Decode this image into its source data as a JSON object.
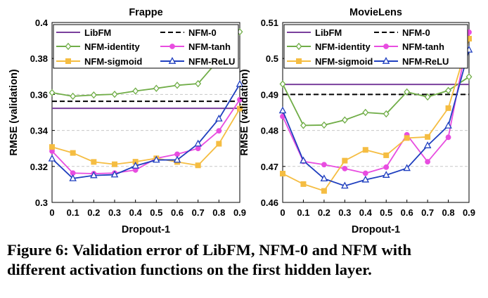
{
  "chart_data": [
    {
      "type": "line",
      "title": "Frappe",
      "xlabel": "Dropout-1",
      "ylabel": "RMSE (validation)",
      "x": [
        0,
        0.1,
        0.2,
        0.3,
        0.4,
        0.5,
        0.6,
        0.7,
        0.8,
        0.9
      ],
      "xticks": [
        "0",
        "0.1",
        "0.2",
        "0.3",
        "0.4",
        "0.5",
        "0.6",
        "0.7",
        "0.8",
        "0.9"
      ],
      "ylim": [
        0.3,
        0.4
      ],
      "yticks": [
        "0.3",
        "0.32",
        "0.34",
        "0.36",
        "0.38",
        "0.4"
      ],
      "grid": true,
      "legend_position": "top",
      "series": [
        {
          "name": "LibFM",
          "style": "solid",
          "color": "#7a3f9d",
          "marker": "none",
          "values": [
            0.3523,
            0.3523,
            0.3523,
            0.3523,
            0.3523,
            0.3523,
            0.3523,
            0.3523,
            0.3523,
            0.3523
          ]
        },
        {
          "name": "NFM-0",
          "style": "dashed",
          "color": "#000000",
          "marker": "none",
          "values": [
            0.3562,
            0.3562,
            0.3562,
            0.3562,
            0.3562,
            0.3562,
            0.3562,
            0.3562,
            0.3562,
            0.3562
          ]
        },
        {
          "name": "NFM-identity",
          "style": "solid",
          "color": "#70ad47",
          "marker": "diamond",
          "values": [
            0.361,
            0.359,
            0.3597,
            0.3601,
            0.3619,
            0.3634,
            0.3651,
            0.366,
            0.3794,
            0.3948
          ]
        },
        {
          "name": "NFM-tanh",
          "style": "solid",
          "color": "#e84de0",
          "marker": "circle",
          "values": [
            0.3285,
            0.3163,
            0.316,
            0.3163,
            0.318,
            0.3245,
            0.3268,
            0.33,
            0.3398,
            0.3571
          ]
        },
        {
          "name": "NFM-sigmoid",
          "style": "solid",
          "color": "#f5bd42",
          "marker": "square",
          "values": [
            0.3308,
            0.3275,
            0.3225,
            0.3212,
            0.3226,
            0.3245,
            0.3225,
            0.3206,
            0.3326,
            0.3521
          ]
        },
        {
          "name": "NFM-ReLU",
          "style": "solid",
          "color": "#1f3fbf",
          "marker": "triangle",
          "values": [
            0.3243,
            0.3133,
            0.315,
            0.3154,
            0.3203,
            0.3236,
            0.3236,
            0.3326,
            0.3465,
            0.3657
          ]
        }
      ]
    },
    {
      "type": "line",
      "title": "MovieLens",
      "xlabel": "Dropout-1",
      "ylabel": "RMSE (validation)",
      "x": [
        0,
        0.1,
        0.2,
        0.3,
        0.4,
        0.5,
        0.6,
        0.7,
        0.8,
        0.9
      ],
      "xticks": [
        "0",
        "0.1",
        "0.2",
        "0.3",
        "0.4",
        "0.5",
        "0.6",
        "0.7",
        "0.8",
        "0.9"
      ],
      "ylim": [
        0.46,
        0.51
      ],
      "yticks": [
        "0.46",
        "0.47",
        "0.48",
        "0.49",
        "0.5",
        "0.51"
      ],
      "grid": true,
      "legend_position": "top",
      "series": [
        {
          "name": "LibFM",
          "style": "solid",
          "color": "#7a3f9d",
          "marker": "none",
          "values": [
            0.4928,
            0.4928,
            0.4928,
            0.4928,
            0.4928,
            0.4928,
            0.4928,
            0.4928,
            0.4928,
            0.4928
          ]
        },
        {
          "name": "NFM-0",
          "style": "dashed",
          "color": "#000000",
          "marker": "none",
          "values": [
            0.49,
            0.49,
            0.49,
            0.49,
            0.49,
            0.49,
            0.49,
            0.49,
            0.49,
            0.49
          ]
        },
        {
          "name": "NFM-identity",
          "style": "solid",
          "color": "#70ad47",
          "marker": "diamond",
          "values": [
            0.4929,
            0.4814,
            0.4815,
            0.4829,
            0.485,
            0.4846,
            0.4907,
            0.4893,
            0.4911,
            0.4949
          ]
        },
        {
          "name": "NFM-tanh",
          "style": "solid",
          "color": "#e84de0",
          "marker": "circle",
          "values": [
            0.4839,
            0.4714,
            0.4705,
            0.4694,
            0.4681,
            0.4698,
            0.4788,
            0.4713,
            0.4781,
            0.5073
          ]
        },
        {
          "name": "NFM-sigmoid",
          "style": "solid",
          "color": "#f5bd42",
          "marker": "square",
          "values": [
            0.468,
            0.4651,
            0.4632,
            0.4716,
            0.4746,
            0.4731,
            0.4779,
            0.4782,
            0.4862,
            0.5055
          ]
        },
        {
          "name": "NFM-ReLU",
          "style": "solid",
          "color": "#1f3fbf",
          "marker": "triangle",
          "values": [
            0.4855,
            0.4716,
            0.4666,
            0.4646,
            0.4663,
            0.4676,
            0.4695,
            0.4758,
            0.4813,
            0.5024
          ]
        }
      ]
    }
  ],
  "caption": {
    "line1": "Figure 6: Validation error of LibFM, NFM-0 and NFM with",
    "line2": "different activation functions on the first hidden layer."
  }
}
